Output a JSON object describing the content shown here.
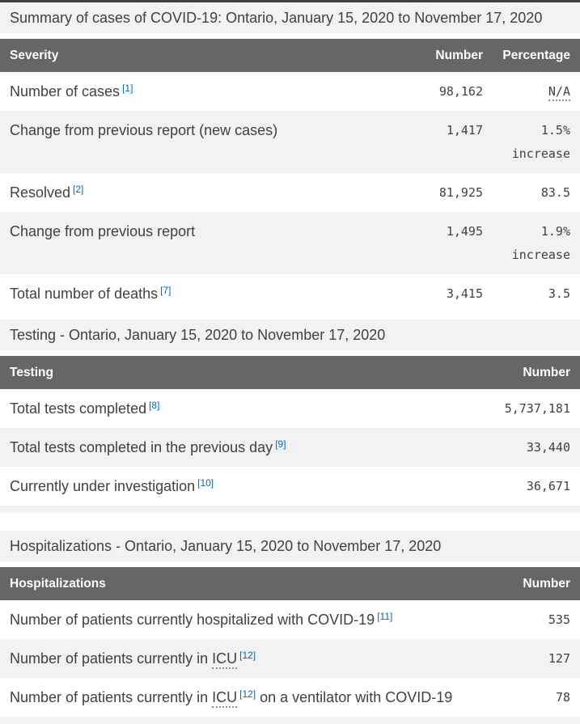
{
  "colors": {
    "header_bg": "#666666",
    "row_alt_bg": "#f2f2f2",
    "title_bar_bg": "#f2f2f2",
    "top_border": "#414042",
    "footnote_link_blue": "#0066cc",
    "text": "#414042"
  },
  "summary_table": {
    "title": "Summary of cases of COVID-19: Ontario, January 15, 2020 to November 17, 2020",
    "header": {
      "label": "Severity",
      "number": "Number",
      "percentage": "Percentage"
    },
    "rows": [
      {
        "label": "Number of cases",
        "footnote": "[1]",
        "number": "98,162",
        "percentage": "N/A"
      },
      {
        "label": "Change from previous report (new cases)",
        "number": "1,417",
        "percentage": "1.5%",
        "percentage_note": "increase"
      },
      {
        "label": "Resolved",
        "footnote": "[2]",
        "number": "81,925",
        "percentage": "83.5"
      },
      {
        "label": "Change from previous report",
        "number": "1,495",
        "percentage": "1.9%",
        "percentage_note": "increase"
      },
      {
        "label": "Total number of deaths",
        "footnote": "[7]",
        "number": "3,415",
        "percentage": "3.5"
      }
    ]
  },
  "testing_table": {
    "title": "Testing - Ontario, January 15, 2020 to November 17, 2020",
    "header": {
      "label": "Testing",
      "number": "Number"
    },
    "rows": [
      {
        "label": "Total tests completed",
        "footnote": "[8]",
        "number": "5,737,181"
      },
      {
        "label": "Total tests completed in the previous day",
        "footnote": "[9]",
        "number": "33,440"
      },
      {
        "label": "Currently under investigation",
        "footnote": "[10]",
        "number": "36,671"
      }
    ]
  },
  "hospitalizations_table": {
    "title": "Hospitalizations - Ontario, January 15, 2020 to November 17, 2020",
    "header": {
      "label": "Hospitalizations",
      "number": "Number"
    },
    "rows": [
      {
        "label": "Number of patients currently hospitalized with COVID-19",
        "footnote": "[11]",
        "number": "535"
      },
      {
        "label_pre": "Number of patients currently in",
        "abbr": "ICU",
        "footnote": "[12]",
        "number": "127"
      },
      {
        "label_pre": "Number of patients currently in",
        "abbr": "ICU",
        "footnote": "[12]",
        "label_post": "on a ventilator with COVID-19",
        "number": "78"
      }
    ]
  }
}
